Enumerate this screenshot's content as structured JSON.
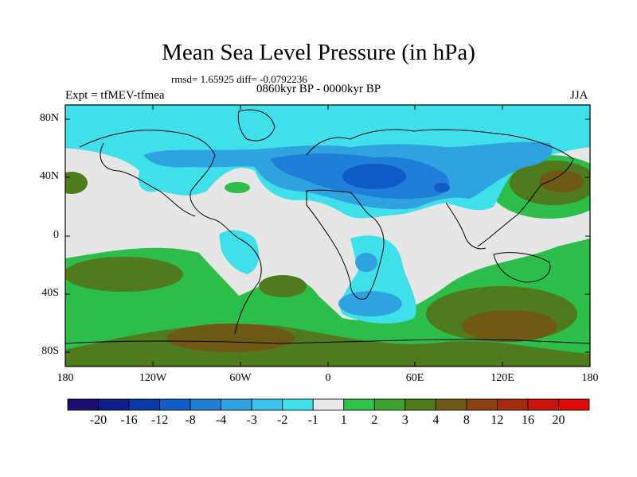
{
  "title": "Mean Sea Level Pressure (in hPa)",
  "stats": "rmsd= 1.65925 diff= -0.0792236",
  "period": "0860kyr BP - 0000kyr BP",
  "experiment": "Expt = tfMEV-tfmea",
  "season": "JJA",
  "lat_labels": [
    "80N",
    "40N",
    "0",
    "40S",
    "80S"
  ],
  "lon_labels": [
    "180",
    "120W",
    "60W",
    "0",
    "60E",
    "120E",
    "180"
  ],
  "colorbar": {
    "labels": [
      "-20",
      "-16",
      "-12",
      "-8",
      "-4",
      "-3",
      "-2",
      "-1",
      "1",
      "2",
      "3",
      "4",
      "8",
      "12",
      "16",
      "20"
    ],
    "colors": [
      "#1a0f6e",
      "#0e1e8a",
      "#0a3aa8",
      "#0f5cc8",
      "#1f7fd8",
      "#2ea3e0",
      "#3cc4ea",
      "#3fe0ea",
      "#e8e8e8",
      "#2ec24a",
      "#3fa02e",
      "#4f7a1e",
      "#6e5a16",
      "#8a4212",
      "#a82a0e",
      "#c8140a",
      "#e00a08"
    ]
  }
}
